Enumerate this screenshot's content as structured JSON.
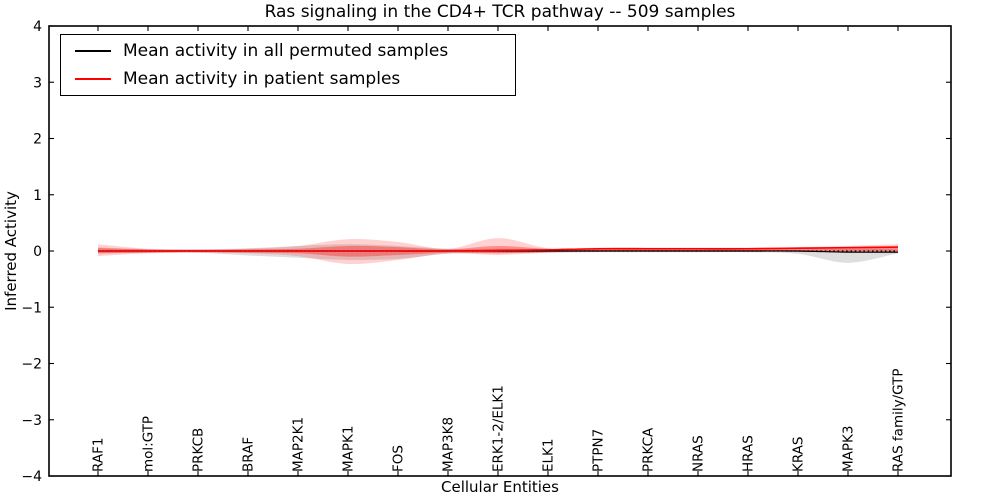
{
  "title": "Ras signaling in the CD4+ TCR pathway -- 509 samples",
  "legend": {
    "items": [
      {
        "label": "Mean activity in all permuted samples",
        "color": "#000000"
      },
      {
        "label": "Mean activity in patient samples",
        "color": "#ff0000"
      }
    ]
  },
  "chart_data": {
    "type": "line",
    "title": "Ras signaling in the CD4+ TCR pathway -- 509 samples",
    "xlabel": "Cellular Entities",
    "ylabel": "Inferred Activity",
    "ylim": [
      -4,
      4
    ],
    "yticks": [
      4,
      3,
      2,
      1,
      0,
      -1,
      -2,
      -3,
      -4
    ],
    "ytick_labels": [
      "4",
      "3",
      "2",
      "1",
      "0",
      "−1",
      "−2",
      "−3",
      "−4"
    ],
    "grid": false,
    "legend_position": "upper left",
    "categories": [
      "RAF1",
      "mol:GTP",
      "PRKCB",
      "BRAF",
      "MAP2K1",
      "MAPK1",
      "FOS",
      "MAP3K8",
      "ERK1-2/ELK1",
      "ELK1",
      "PTPN7",
      "PRKCA",
      "NRAS",
      "HRAS",
      "KRAS",
      "MAPK3",
      "RAS family/GTP"
    ],
    "reference_line": {
      "y": 0,
      "style": "dotted",
      "color": "#000000"
    },
    "series": [
      {
        "name": "Mean activity in all permuted samples",
        "color": "#000000",
        "width": 1.2,
        "values": [
          0,
          0,
          0,
          0,
          0,
          0,
          0,
          0,
          0,
          0,
          0,
          0,
          0,
          0,
          0,
          -0.02,
          -0.02
        ]
      },
      {
        "name": "Mean activity in patient samples",
        "color": "#ff0000",
        "width": 1.6,
        "values": [
          0,
          0,
          0,
          0,
          0,
          0,
          0,
          0,
          0.01,
          0.02,
          0.04,
          0.04,
          0.04,
          0.04,
          0.05,
          0.06,
          0.07
        ]
      }
    ],
    "bands": [
      {
        "name": "permuted-samples-range",
        "color": "#000000",
        "opacity": 0.13,
        "upper": [
          0.05,
          0.03,
          0.03,
          0.05,
          0.09,
          0.12,
          0.09,
          0.04,
          0.04,
          0.03,
          0.02,
          0.02,
          0.02,
          0.02,
          0.02,
          0.04,
          0.03
        ],
        "lower": [
          -0.05,
          -0.03,
          -0.03,
          -0.08,
          -0.12,
          -0.16,
          -0.14,
          -0.05,
          -0.04,
          -0.03,
          -0.02,
          -0.02,
          -0.02,
          -0.02,
          -0.05,
          -0.21,
          -0.04
        ]
      },
      {
        "name": "patient-samples-outer-band",
        "color": "#ff0000",
        "opacity": 0.18,
        "upper": [
          0.12,
          0.04,
          0.03,
          0.04,
          0.09,
          0.21,
          0.16,
          0.04,
          0.23,
          0.05,
          0.06,
          0.06,
          0.06,
          0.06,
          0.07,
          0.09,
          0.12
        ],
        "lower": [
          -0.09,
          -0.04,
          -0.03,
          -0.04,
          -0.09,
          -0.23,
          -0.16,
          -0.04,
          -0.07,
          -0.03,
          -0.02,
          -0.02,
          -0.02,
          -0.02,
          -0.02,
          -0.03,
          -0.04
        ]
      },
      {
        "name": "patient-samples-inner-band",
        "color": "#ff0000",
        "opacity": 0.32,
        "upper": [
          0.06,
          0.03,
          0.02,
          0.03,
          0.04,
          0.09,
          0.07,
          0.03,
          0.09,
          0.04,
          0.05,
          0.05,
          0.05,
          0.05,
          0.06,
          0.07,
          0.08
        ],
        "lower": [
          -0.04,
          -0.03,
          -0.02,
          -0.03,
          -0.04,
          -0.1,
          -0.07,
          -0.03,
          -0.04,
          -0.02,
          -0.01,
          -0.01,
          -0.01,
          -0.01,
          -0.01,
          -0.01,
          0
        ]
      }
    ]
  }
}
